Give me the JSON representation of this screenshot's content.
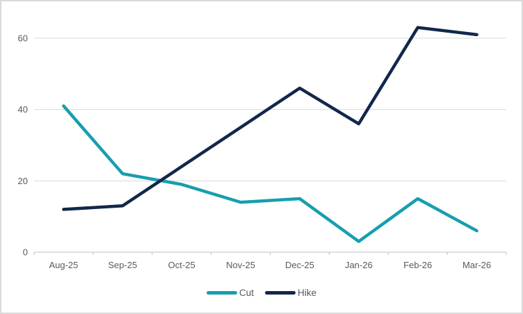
{
  "chart_data": {
    "type": "line",
    "categories": [
      "Aug-25",
      "Sep-25",
      "Oct-25",
      "Nov-25",
      "Dec-25",
      "Jan-26",
      "Feb-26",
      "Mar-26"
    ],
    "series": [
      {
        "name": "Cut",
        "color": "#179eaf",
        "values": [
          41,
          22,
          19,
          14,
          15,
          3,
          15,
          6
        ]
      },
      {
        "name": "Hike",
        "color": "#11284b",
        "values": [
          12,
          13,
          24,
          35,
          46,
          36,
          63,
          61
        ]
      }
    ],
    "title": "",
    "xlabel": "",
    "ylabel": "",
    "ylim": [
      0,
      70
    ],
    "yticks": [
      0,
      20,
      40,
      60
    ],
    "grid": true,
    "legend_position": "bottom"
  },
  "colors": {
    "background": "#ffffff",
    "frame_border": "#d9d9d9",
    "gridline": "#d9d9d9",
    "axis_line": "#bfbfbf",
    "tick_label": "#595959"
  }
}
